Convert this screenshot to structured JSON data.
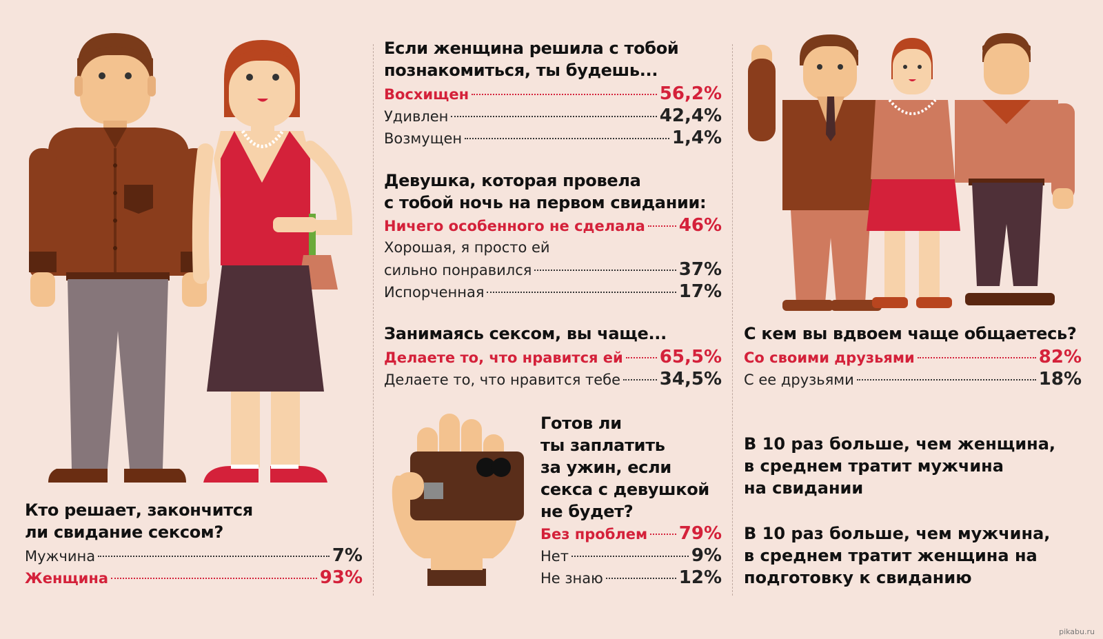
{
  "section_left": {
    "question_line1": "Кто решает, закончится",
    "question_line2": "ли свидание сексом?",
    "rows": [
      {
        "label": "Мужчина",
        "value": "7%",
        "highlight": false
      },
      {
        "label": "Женщина",
        "value": "93%",
        "highlight": true
      }
    ]
  },
  "section_mid": {
    "q1": {
      "line1": "Если женщина решила с тобой",
      "line2": "познакомиться, ты будешь...",
      "rows": [
        {
          "label": "Восхищен",
          "value": "56,2%",
          "highlight": true
        },
        {
          "label": "Удивлен",
          "value": "42,4%",
          "highlight": false
        },
        {
          "label": "Возмущен",
          "value": "1,4%",
          "highlight": false
        }
      ]
    },
    "q2": {
      "line1": "Девушка, которая провела",
      "line2": "с тобой ночь на первом свидании:",
      "rows": [
        {
          "label": "Ничего особенного не сделала",
          "value": "46%",
          "highlight": true
        },
        {
          "label_line1": "Хорошая, я просто ей",
          "label": "сильно понравился",
          "value": "37%",
          "highlight": false
        },
        {
          "label": "Испорченная",
          "value": "17%",
          "highlight": false
        }
      ]
    },
    "q3": {
      "line1": "Занимаясь сексом, вы чаще...",
      "rows": [
        {
          "label": "Делаете то, что нравится ей",
          "value": "65,5%",
          "highlight": true
        },
        {
          "label": "Делаете то, что нравится тебе",
          "value": "34,5%",
          "highlight": false
        }
      ]
    },
    "q4": {
      "line1": "Готов ли",
      "line2": "ты заплатить",
      "line3": "за ужин, если",
      "line4": "секса с девушкой",
      "line5": "не будет?",
      "rows": [
        {
          "label": "Без проблем",
          "value": "79%",
          "highlight": true
        },
        {
          "label": "Нет",
          "value": "9%",
          "highlight": false
        },
        {
          "label": "Не знаю",
          "value": "12%",
          "highlight": false
        }
      ]
    }
  },
  "section_right": {
    "q5": {
      "line1": "С кем вы вдвоем чаще общаетесь?",
      "rows": [
        {
          "label": "Со своими друзьями",
          "value": "82%",
          "highlight": true
        },
        {
          "label": "С ее друзьями",
          "value": "18%",
          "highlight": false
        }
      ]
    },
    "fact1": {
      "line1": "В 10 раз больше, чем женщина,",
      "line2": "в среднем тратит мужчина",
      "line3": "на свидании"
    },
    "fact2": {
      "line1": "В 10 раз больше, чем мужчина,",
      "line2": "в среднем тратит женщина на",
      "line3": "подготовку к свиданию"
    }
  },
  "watermark": "pikabu.ru",
  "colors": {
    "background": "#f6e4dc",
    "accent_red": "#d4213a",
    "text": "#111111"
  }
}
